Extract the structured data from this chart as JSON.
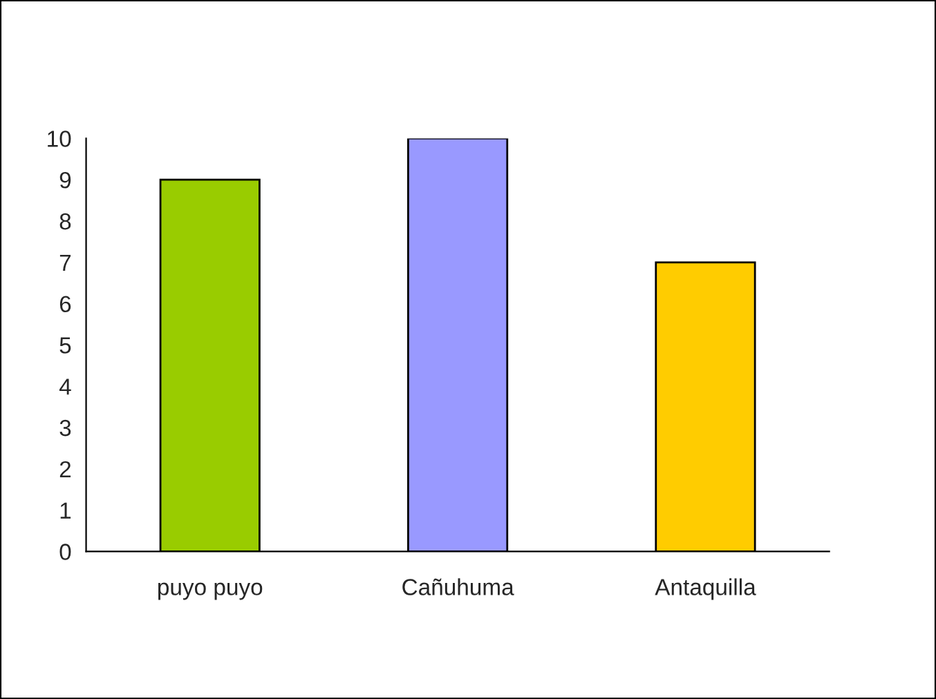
{
  "chart_data": {
    "type": "bar",
    "categories": [
      "puyo puyo",
      "Cañuhuma",
      "Antaquilla"
    ],
    "values": [
      9,
      10,
      7
    ],
    "colors": [
      "#99cc00",
      "#9999ff",
      "#ffcc00"
    ],
    "ylim": [
      0,
      10
    ],
    "yticks": [
      0,
      1,
      2,
      3,
      4,
      5,
      6,
      7,
      8,
      9,
      10
    ],
    "grid": false,
    "legend": false
  }
}
